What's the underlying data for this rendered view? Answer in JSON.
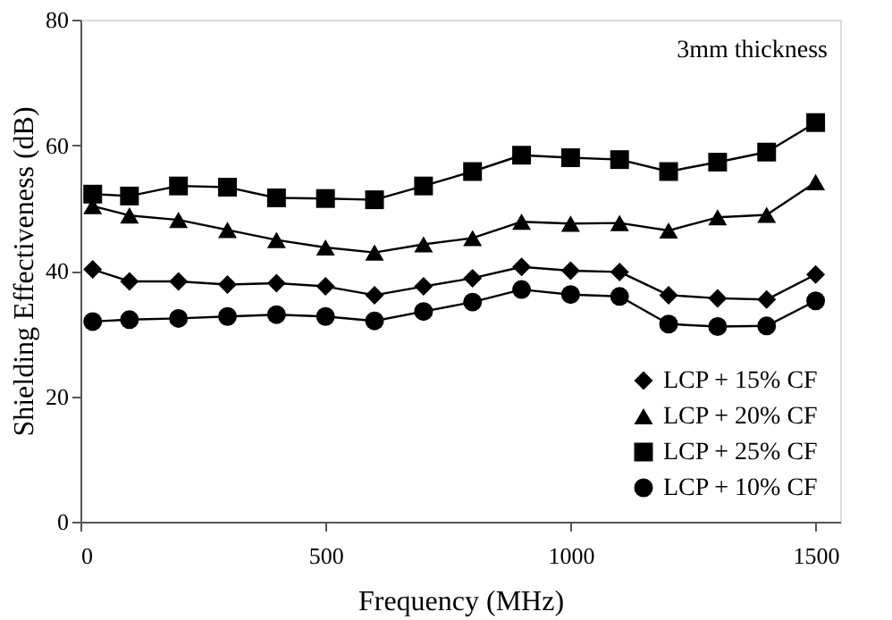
{
  "chart_data": {
    "type": "line",
    "xlabel": "Frequency (MHz)",
    "ylabel": "Shielding Effectiveness (dB)",
    "annotations": [
      "3mm thickness"
    ],
    "x": [
      25,
      100,
      200,
      300,
      400,
      500,
      600,
      700,
      800,
      900,
      1000,
      1100,
      1200,
      1300,
      1400,
      1500
    ],
    "xlim": [
      0,
      1550
    ],
    "xticks": [
      0,
      500,
      1000,
      1500
    ],
    "ylim": [
      0,
      80
    ],
    "yticks": [
      0,
      20,
      40,
      60,
      80
    ],
    "grid": false,
    "legend": "bottom right",
    "line_style": "solid",
    "series": [
      {
        "name": "LCP + 15% CF",
        "color": "#000000",
        "marker": "diamond",
        "values": [
          40.2,
          38.3,
          38.3,
          37.8,
          38.0,
          37.5,
          36.1,
          37.5,
          38.8,
          40.6,
          40.0,
          39.8,
          36.1,
          35.6,
          35.4,
          39.4
        ]
      },
      {
        "name": "LCP + 20% CF",
        "color": "#000000",
        "marker": "triangle",
        "values": [
          50.3,
          48.8,
          48.1,
          46.5,
          44.9,
          43.7,
          42.9,
          44.2,
          45.2,
          47.8,
          47.5,
          47.6,
          46.4,
          48.5,
          48.9,
          54.1
        ]
      },
      {
        "name": "LCP + 25% CF",
        "color": "#000000",
        "marker": "square",
        "values": [
          52.2,
          51.9,
          53.5,
          53.3,
          51.6,
          51.5,
          51.3,
          53.5,
          55.8,
          58.4,
          58.0,
          57.7,
          55.8,
          57.3,
          58.9,
          63.6
        ]
      },
      {
        "name": "LCP + 10% CF",
        "color": "#000000",
        "marker": "circle",
        "values": [
          31.9,
          32.2,
          32.4,
          32.7,
          33.0,
          32.7,
          32.0,
          33.5,
          35.0,
          37.0,
          36.2,
          35.9,
          31.5,
          31.1,
          31.2,
          35.2
        ]
      }
    ]
  }
}
